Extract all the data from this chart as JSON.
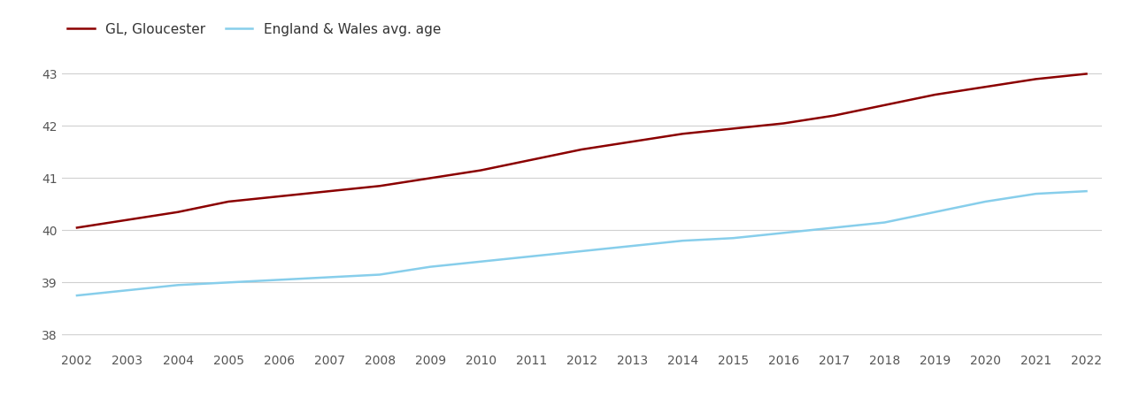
{
  "years": [
    2002,
    2003,
    2004,
    2005,
    2006,
    2007,
    2008,
    2009,
    2010,
    2011,
    2012,
    2013,
    2014,
    2015,
    2016,
    2017,
    2018,
    2019,
    2020,
    2021,
    2022
  ],
  "gloucester": [
    40.05,
    40.2,
    40.35,
    40.55,
    40.65,
    40.75,
    40.85,
    41.0,
    41.15,
    41.35,
    41.55,
    41.7,
    41.85,
    41.95,
    42.05,
    42.2,
    42.4,
    42.6,
    42.75,
    42.9,
    43.0
  ],
  "england_wales": [
    38.75,
    38.85,
    38.95,
    39.0,
    39.05,
    39.1,
    39.15,
    39.3,
    39.4,
    39.5,
    39.6,
    39.7,
    39.8,
    39.85,
    39.95,
    40.05,
    40.15,
    40.35,
    40.55,
    40.7,
    40.75
  ],
  "gloucester_color": "#8B0000",
  "england_wales_color": "#87CEEB",
  "gloucester_label": "GL, Gloucester",
  "england_wales_label": "England & Wales avg. age",
  "ylim": [
    37.7,
    43.5
  ],
  "yticks": [
    38,
    39,
    40,
    41,
    42,
    43
  ],
  "background_color": "#ffffff",
  "grid_color": "#d0d0d0",
  "line_width": 1.8,
  "legend_fontsize": 11,
  "tick_fontsize": 10,
  "tick_color": "#555555"
}
